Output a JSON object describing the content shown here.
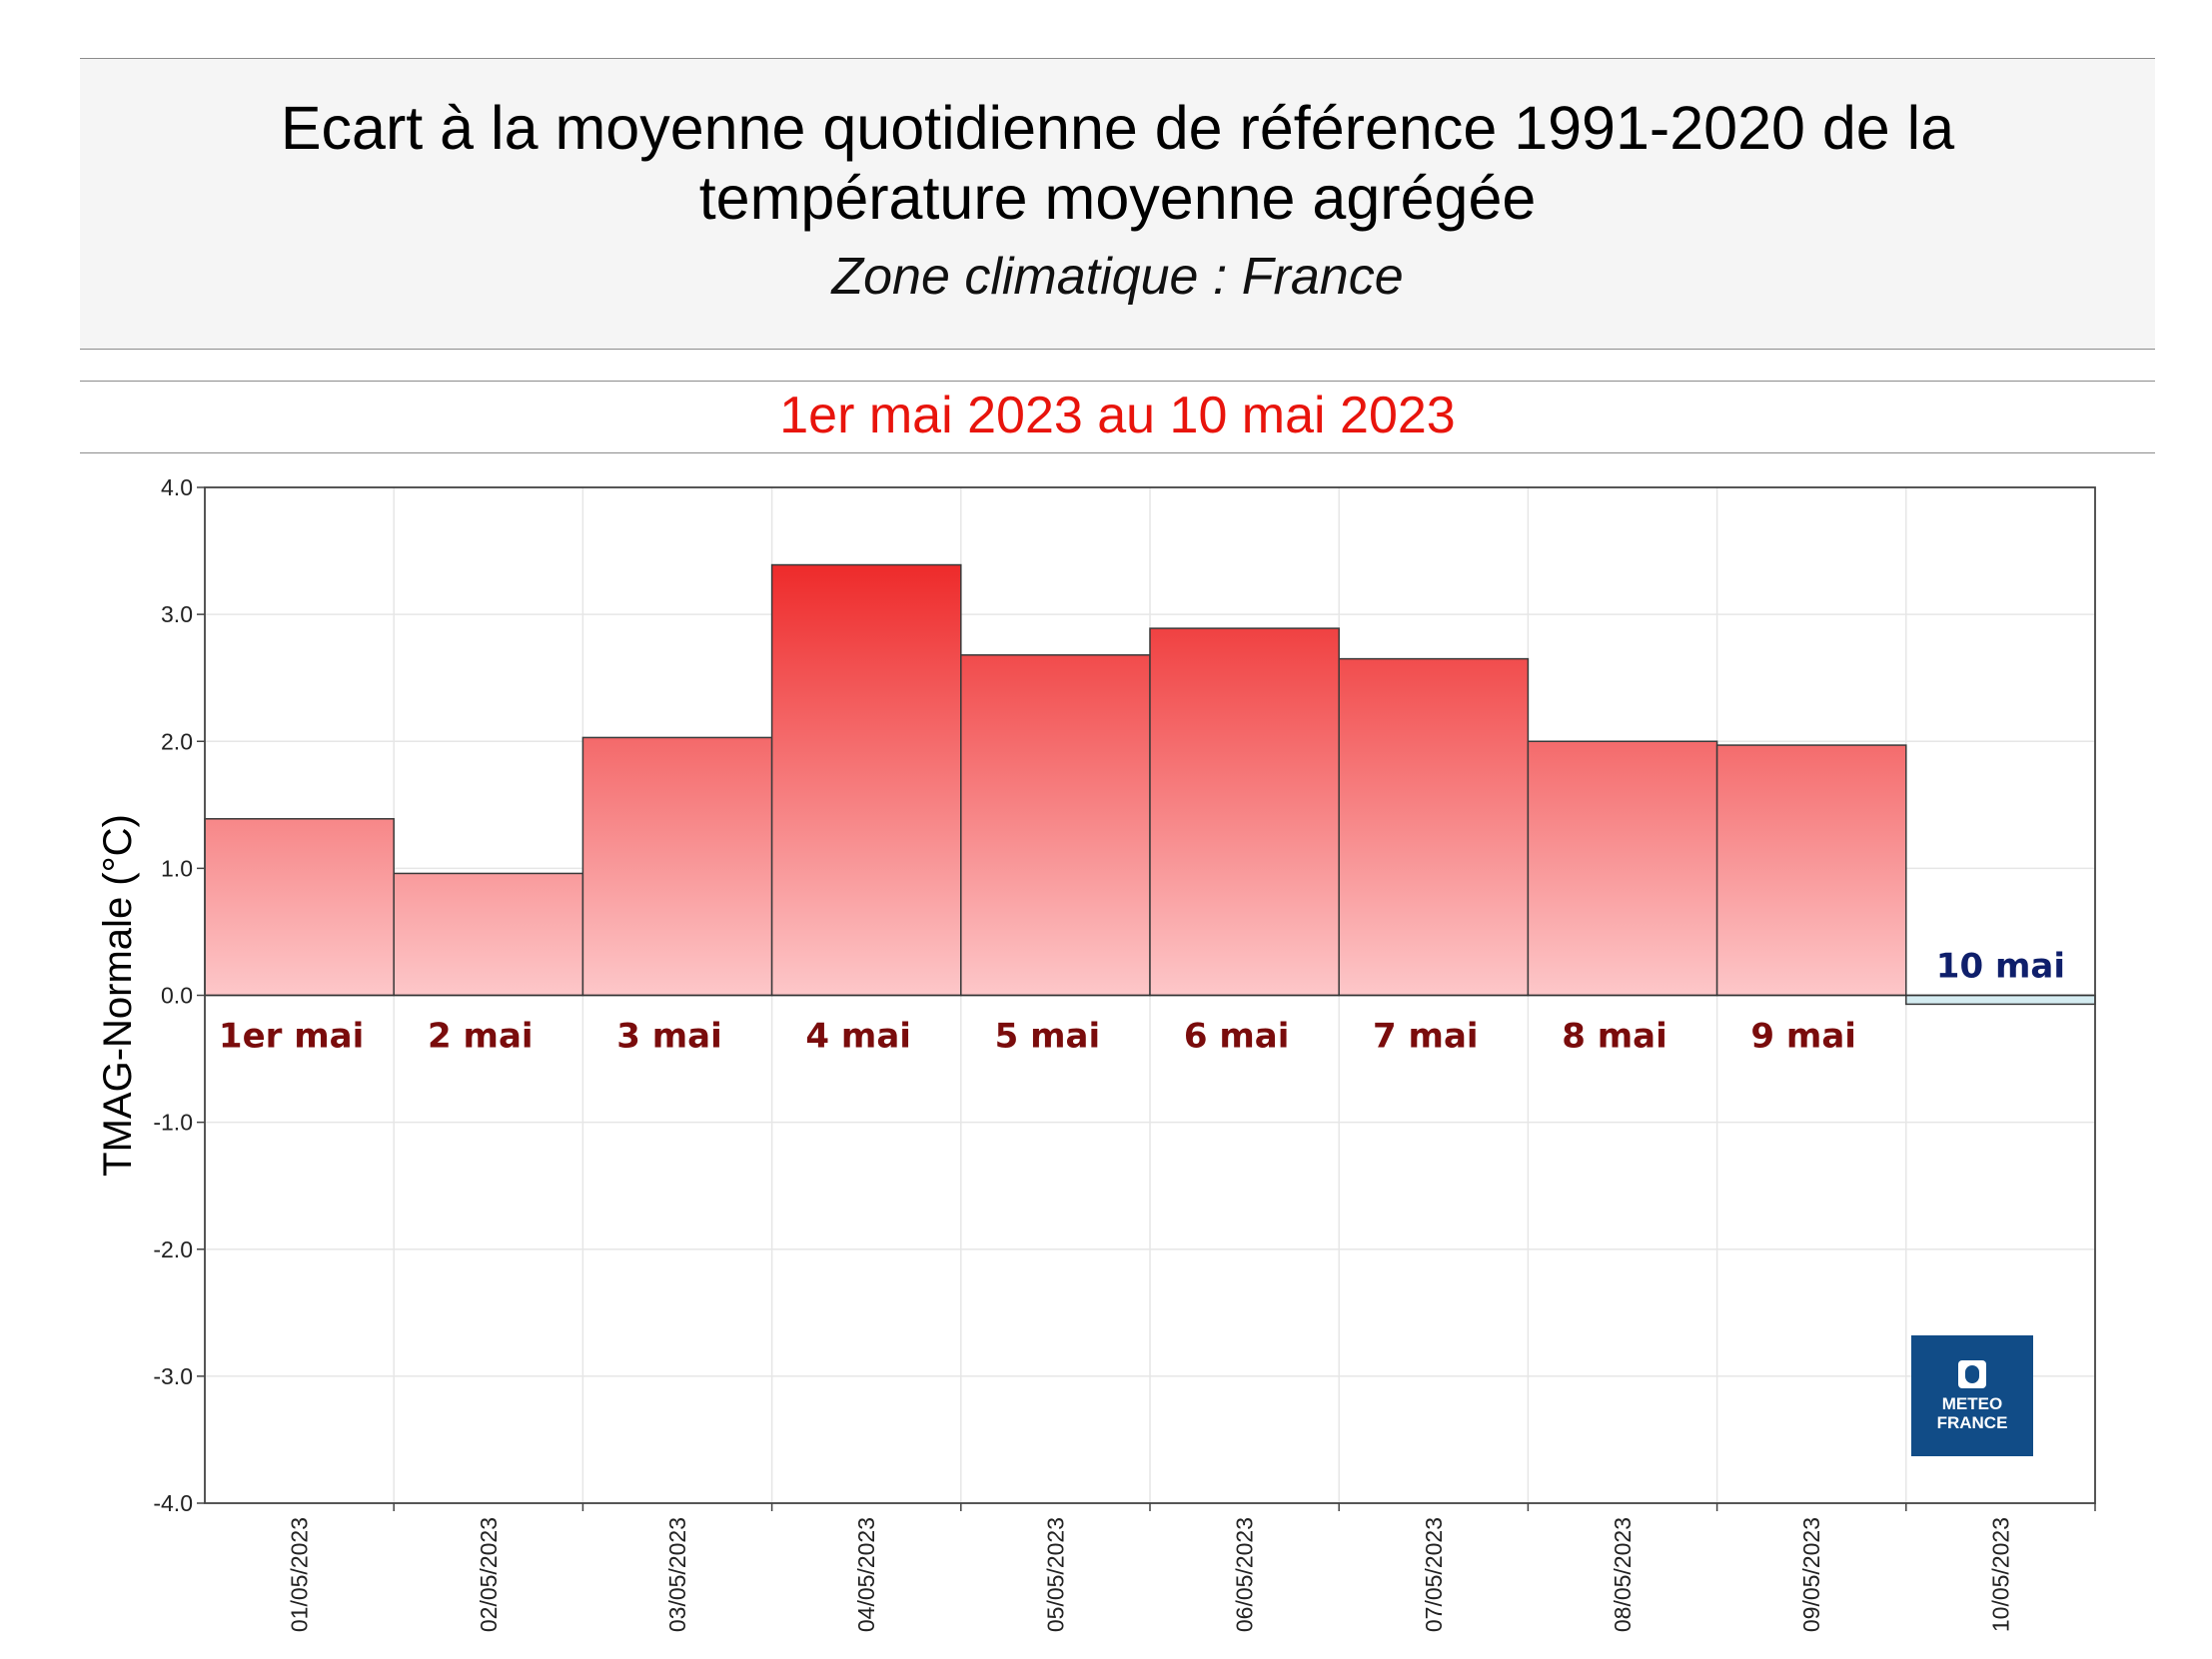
{
  "header": {
    "title_line_1": "Ecart à la moyenne quotidienne de référence 1991-2020 de la",
    "title_line_2": "température moyenne  agrégée",
    "subtitle": "Zone climatique : France",
    "period": "1er mai 2023 au 10 mai 2023"
  },
  "logo": {
    "line_1": "METEO",
    "line_2": "FRANCE"
  },
  "colors": {
    "positive_top": "#ee2a2a",
    "positive_bottom": "#fdc7c9",
    "negative_fill": "#d4ecf1",
    "positive_label": "#7a0c0c",
    "negative_label": "#0f1f6b",
    "period_text": "#e8140c",
    "logo_bg": "#114c87"
  },
  "chart_data": {
    "type": "bar",
    "ylabel": "TMAG-Normale (°C)",
    "ylim": [
      -4.0,
      4.0
    ],
    "yticks": [
      "4.0",
      "3.0",
      "2.0",
      "1.0",
      "0.0",
      "-1.0",
      "-2.0",
      "-3.0",
      "-4.0"
    ],
    "ytick_values": [
      4,
      3,
      2,
      1,
      0,
      -1,
      -2,
      -3,
      -4
    ],
    "grid": true,
    "categories": [
      "01/05/2023",
      "02/05/2023",
      "03/05/2023",
      "04/05/2023",
      "05/05/2023",
      "06/05/2023",
      "07/05/2023",
      "08/05/2023",
      "09/05/2023",
      "10/05/2023"
    ],
    "values": [
      1.39,
      0.96,
      2.03,
      3.39,
      2.68,
      2.89,
      2.65,
      2.0,
      1.97,
      -0.07
    ],
    "bar_labels": [
      "1er mai",
      "2 mai",
      "3 mai",
      "4 mai",
      "5 mai",
      "6 mai",
      "7 mai",
      "8 mai",
      "9 mai",
      "10 mai"
    ]
  }
}
